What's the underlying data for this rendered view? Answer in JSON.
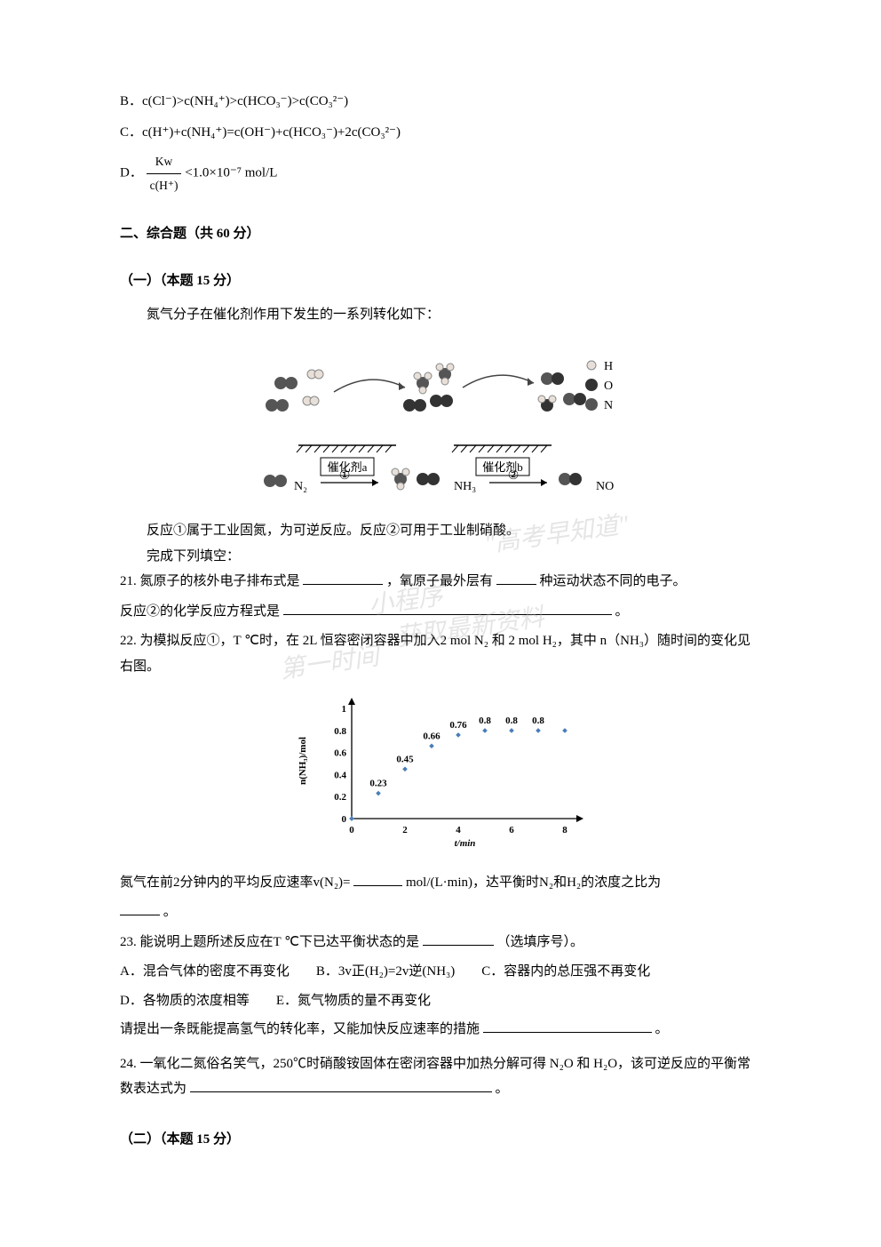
{
  "options": {
    "B": "B．c(Cl⁻)>c(NH₄⁺)>c(HCO₃⁻)>c(CO₃²⁻)",
    "C": "C．c(H⁺)+c(NH₄⁺)=c(OH⁻)+c(HCO₃⁻)+2c(CO₃²⁻)",
    "D_prefix": "D．",
    "D_formula_num": "Kw",
    "D_formula_den": "c(H⁺)",
    "D_suffix": "<1.0×10⁻⁷ mol/L"
  },
  "section2": {
    "title": "二、综合题（共 60 分）",
    "sub1_title": "（一）（本题 15 分）",
    "intro": "氮气分子在催化剂作用下发生的一系列转化如下：",
    "reaction_diagram": {
      "legend": [
        {
          "label": "H",
          "color": "#e8e0d8",
          "stroke": "#888"
        },
        {
          "label": "O",
          "color": "#333333",
          "stroke": "#000"
        },
        {
          "label": "N",
          "color": "#555555",
          "stroke": "#333"
        }
      ],
      "catalysts": [
        "催化剂a",
        "催化剂b"
      ],
      "species": [
        "N₂",
        "①",
        "NH₃",
        "②",
        "NO"
      ]
    },
    "intro2": "反应①属于工业固氮，为可逆反应。反应②可用于工业制硝酸。",
    "intro3": "完成下列填空：",
    "q21_p1": "21. 氮原子的核外电子排布式是",
    "q21_p2": "，氧原子最外层有",
    "q21_p3": "种运动状态不同的电子。",
    "q21_p4": "反应②的化学反应方程式是",
    "q21_end": "。",
    "q22_p1": "22. 为模拟反应①，T ℃时，在 2L 恒容密闭容器中加入2 mol N₂ 和 2 mol H₂，其中 n（NH₃）随时间的变化见右图。",
    "chart": {
      "type": "scatter",
      "xlabel": "t/min",
      "ylabel": "n(NH₃)/mol",
      "x_ticks": [
        0,
        2,
        4,
        6,
        8
      ],
      "y_ticks": [
        0,
        0.2,
        0.4,
        0.6,
        0.8,
        1
      ],
      "points_x": [
        0,
        1,
        2,
        3,
        4,
        5,
        6,
        7,
        8
      ],
      "points_y": [
        0,
        0.23,
        0.45,
        0.66,
        0.76,
        0.8,
        0.8,
        0.8,
        0.8
      ],
      "point_labels": [
        "",
        "0.23",
        "0.45",
        "0.66",
        "0.76",
        "0.8",
        "0.8",
        "0.8",
        ""
      ],
      "marker_color": "#4a7db8",
      "marker_size": 4,
      "axis_color": "#000000",
      "label_fontsize": 11,
      "tick_fontsize": 11,
      "xlim": [
        0,
        8.5
      ],
      "ylim": [
        0,
        1.05
      ]
    },
    "q22_p2": "氮气在前2分钟内的平均反应速率v(N₂)=",
    "q22_p3": "mol/(L·min)，达平衡时N₂和H₂的浓度之比为",
    "q22_p4": "。",
    "q23_p1": "23. 能说明上题所述反应在T ℃下已达平衡状态的是",
    "q23_p2": "（选填序号）。",
    "q23_opts": {
      "A": "A．混合气体的密度不再变化",
      "B": "B．3v正(H₂)=2v逆(NH₃)",
      "C": "C．容器内的总压强不再变化",
      "D": "D．各物质的浓度相等",
      "E": "E．氮气物质的量不再变化"
    },
    "q23_p3": "请提出一条既能提高氢气的转化率，又能加快反应速率的措施",
    "q23_end": "。",
    "q24_p1": "24. 一氧化二氮俗名笑气，250℃时硝酸铵固体在密闭容器中加热分解可得 N₂O 和 H₂O，该可逆反应的平衡常数表达式为",
    "q24_end": "。",
    "sub2_title": "（二）（本题 15 分）"
  },
  "watermarks": {
    "w1": "\"高考早知道\"",
    "w2": "小程序",
    "w3": "获取最新资料",
    "w4": "第一时间"
  }
}
